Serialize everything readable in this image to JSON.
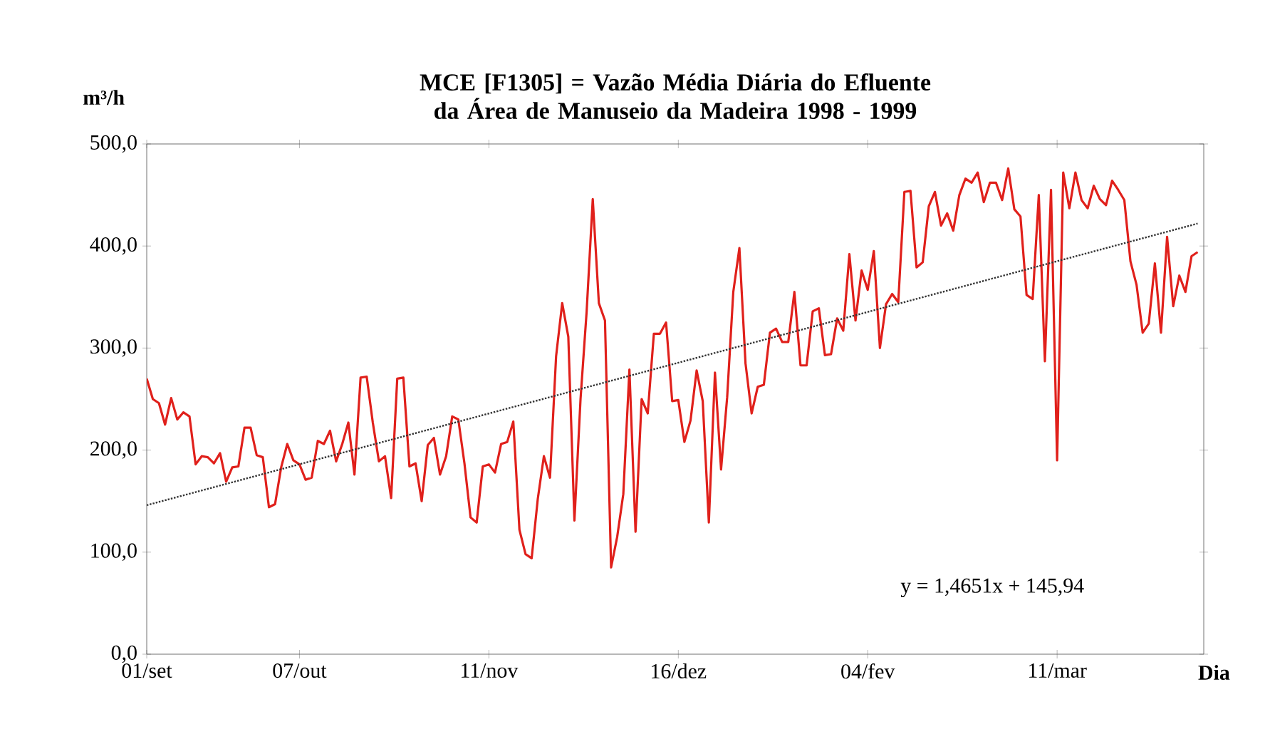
{
  "chart_data": {
    "type": "line",
    "title": "MCE [F1305] = Vazão Média Diária do Efluente da Área de Manuseio da Madeira 1998 - 1999",
    "ylabel": "m³/h",
    "xlabel": "Dia",
    "ylim": [
      0,
      500
    ],
    "categories": [
      "01/set",
      null,
      null,
      null,
      null,
      null,
      null,
      null,
      null,
      null,
      null,
      null,
      null,
      null,
      null,
      null,
      null,
      null,
      null,
      null,
      null,
      null,
      null,
      null,
      null,
      "07/out",
      null,
      null,
      null,
      null,
      null,
      null,
      null,
      null,
      null,
      null,
      null,
      null,
      null,
      null,
      null,
      null,
      null,
      null,
      null,
      null,
      null,
      null,
      null,
      null,
      null,
      null,
      null,
      null,
      null,
      null,
      "11/nov",
      null,
      null,
      null,
      null,
      null,
      null,
      null,
      null,
      null,
      null,
      null,
      null,
      null,
      null,
      null,
      null,
      null,
      null,
      null,
      null,
      null,
      null,
      null,
      null,
      null,
      null,
      null,
      null,
      null,
      null,
      "16/dez",
      null,
      null,
      null,
      null,
      null,
      null,
      null,
      null,
      null,
      null,
      null,
      null,
      null,
      null,
      null,
      null,
      null,
      null,
      null,
      null,
      null,
      null,
      null,
      null,
      null,
      null,
      null,
      null,
      null,
      null,
      "04/fev",
      null,
      null,
      null,
      null,
      null,
      null,
      null,
      null,
      null,
      null,
      null,
      null,
      null,
      null,
      null,
      null,
      null,
      null,
      null,
      null,
      null,
      null,
      null,
      null,
      null,
      null,
      null,
      null,
      null,
      null,
      "11/mar",
      null,
      null,
      null,
      null,
      null,
      null,
      null,
      null,
      null,
      null,
      null,
      null,
      null,
      null,
      null,
      null,
      null,
      null,
      null,
      null,
      null,
      null,
      null
    ],
    "yticks": [
      {
        "value": 0,
        "label": "0,0"
      },
      {
        "value": 100,
        "label": "100,0"
      },
      {
        "value": 200,
        "label": "200,0"
      },
      {
        "value": 300,
        "label": "300,0"
      },
      {
        "value": 400,
        "label": "400,0"
      },
      {
        "value": 500,
        "label": "500,0"
      }
    ],
    "annotations": [
      "y = 1,4651x + 145,94"
    ],
    "series": [
      {
        "color": "#e0201b",
        "line_style": "solid",
        "values": [
          270,
          250,
          246,
          225,
          251,
          230,
          237,
          233,
          186,
          194,
          193,
          187,
          197,
          169,
          183,
          184,
          222,
          222,
          195,
          193,
          144,
          147,
          183,
          206,
          190,
          186,
          171,
          173,
          209,
          206,
          219,
          189,
          206,
          227,
          176,
          271,
          272,
          227,
          189,
          194,
          153,
          270,
          271,
          184,
          187,
          150,
          205,
          212,
          176,
          194,
          233,
          230,
          187,
          134,
          129,
          184,
          186,
          178,
          206,
          208,
          228,
          122,
          98,
          94,
          152,
          194,
          173,
          292,
          344,
          311,
          131,
          250,
          336,
          446,
          344,
          327,
          85,
          115,
          157,
          279,
          120,
          250,
          236,
          314,
          314,
          325,
          248,
          249,
          208,
          229,
          278,
          248,
          129,
          276,
          181,
          252,
          355,
          398,
          285,
          236,
          262,
          264,
          315,
          319,
          306,
          306,
          355,
          283,
          283,
          336,
          339,
          293,
          294,
          329,
          317,
          392,
          327,
          376,
          357,
          395,
          300,
          343,
          353,
          345,
          453,
          454,
          379,
          384,
          439,
          453,
          420,
          432,
          415,
          450,
          466,
          462,
          472,
          443,
          462,
          462,
          445,
          476,
          436,
          429,
          352,
          348,
          450,
          287,
          455,
          190,
          472,
          437,
          472,
          445,
          437,
          459,
          446,
          440,
          464,
          455,
          445,
          385,
          362,
          315,
          324,
          383,
          315,
          409,
          341,
          371,
          355,
          390,
          394
        ]
      },
      {
        "type": "line",
        "color": "#333333",
        "line_style": "dotted",
        "values": [
          146,
          null,
          null,
          null,
          null,
          null,
          null,
          null,
          null,
          null,
          null,
          null,
          null,
          null,
          null,
          null,
          null,
          null,
          null,
          null,
          null,
          null,
          null,
          null,
          null,
          null,
          null,
          null,
          null,
          null,
          null,
          null,
          null,
          null,
          null,
          null,
          null,
          null,
          null,
          null,
          null,
          null,
          null,
          null,
          null,
          null,
          null,
          null,
          null,
          null,
          null,
          null,
          null,
          null,
          null,
          null,
          null,
          null,
          null,
          null,
          null,
          null,
          null,
          null,
          null,
          null,
          null,
          null,
          null,
          null,
          null,
          null,
          null,
          null,
          null,
          null,
          null,
          null,
          null,
          null,
          null,
          null,
          null,
          null,
          null,
          null,
          null,
          null,
          null,
          null,
          null,
          null,
          null,
          null,
          null,
          null,
          null,
          null,
          null,
          null,
          null,
          null,
          null,
          null,
          null,
          null,
          null,
          null,
          null,
          null,
          null,
          null,
          null,
          null,
          null,
          null,
          null,
          null,
          null,
          null,
          null,
          null,
          null,
          null,
          null,
          null,
          null,
          null,
          null,
          null,
          null,
          null,
          null,
          null,
          null,
          null,
          null,
          null,
          null,
          null,
          null,
          null,
          null,
          null,
          null,
          null,
          null,
          null,
          null,
          null,
          null,
          null,
          null,
          null,
          null,
          null,
          null,
          null,
          null,
          null,
          null,
          null,
          null,
          null,
          null,
          null,
          null,
          null,
          null,
          null,
          null,
          null,
          422
        ]
      }
    ]
  }
}
